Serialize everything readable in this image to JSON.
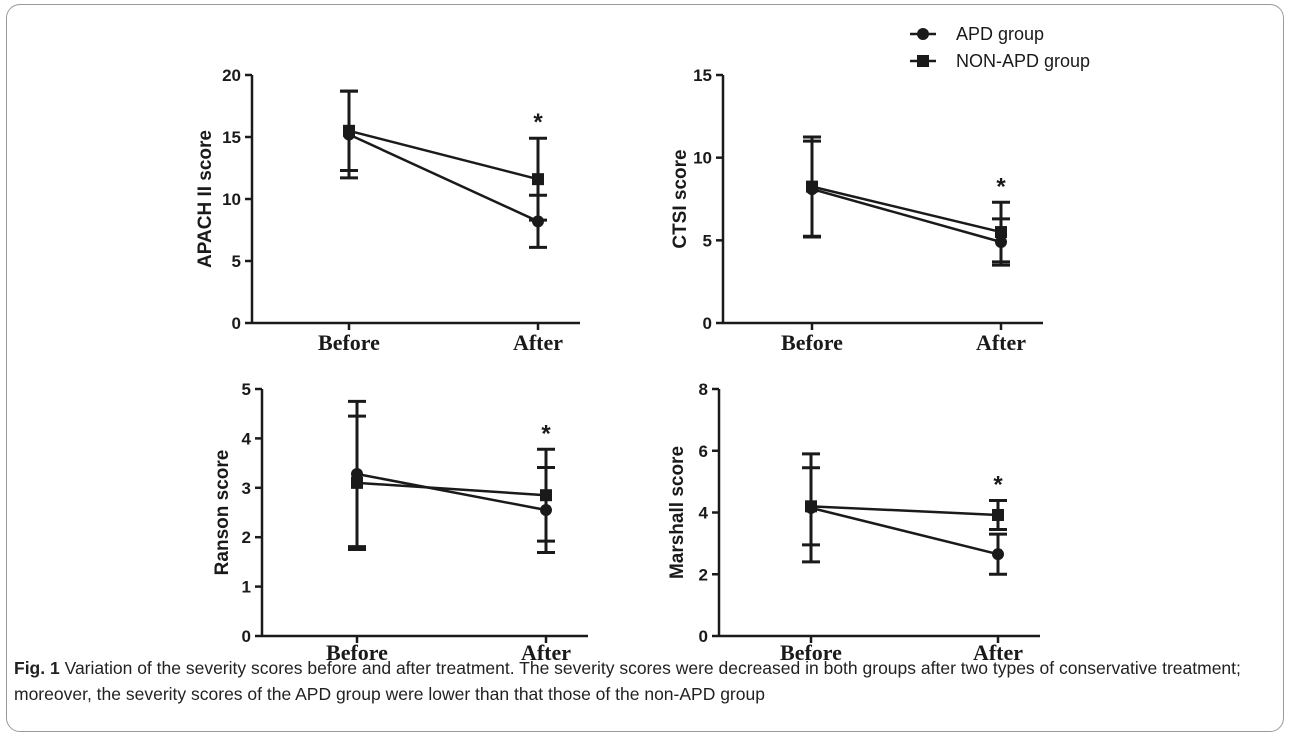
{
  "legend": {
    "position": "top-right",
    "items": [
      {
        "name": "APD group",
        "marker": "circle"
      },
      {
        "name": "NON-APD group",
        "marker": "square"
      }
    ]
  },
  "chart_data": [
    {
      "id": "apache",
      "type": "line",
      "ylabel": "APACH II score",
      "ylim": [
        0,
        20
      ],
      "yticks": [
        0,
        5,
        10,
        15,
        20
      ],
      "categories": [
        "Before",
        "After"
      ],
      "series": [
        {
          "name": "APD group",
          "marker": "circle",
          "values": [
            15.2,
            8.2
          ],
          "sd": [
            3.5,
            2.1
          ]
        },
        {
          "name": "NON-APD group",
          "marker": "square",
          "values": [
            15.5,
            11.6
          ],
          "sd": [
            3.2,
            3.3
          ]
        }
      ],
      "annotations": [
        {
          "category": "After",
          "text": "*"
        }
      ]
    },
    {
      "id": "ctsi",
      "type": "line",
      "ylabel": "CTSI score",
      "ylim": [
        0,
        15
      ],
      "yticks": [
        0,
        5,
        10,
        15
      ],
      "categories": [
        "Before",
        "After"
      ],
      "series": [
        {
          "name": "APD group",
          "marker": "circle",
          "values": [
            8.1,
            4.9
          ],
          "sd": [
            2.9,
            1.4
          ]
        },
        {
          "name": "NON-APD group",
          "marker": "square",
          "values": [
            8.25,
            5.5
          ],
          "sd": [
            3.0,
            1.8
          ]
        }
      ],
      "annotations": [
        {
          "category": "After",
          "text": "*"
        }
      ]
    },
    {
      "id": "ranson",
      "type": "line",
      "ylabel": "Ranson score",
      "ylim": [
        0,
        5
      ],
      "yticks": [
        0,
        1,
        2,
        3,
        4,
        5
      ],
      "categories": [
        "Before",
        "After"
      ],
      "series": [
        {
          "name": "APD group",
          "marker": "circle",
          "values": [
            3.28,
            2.55
          ],
          "sd": [
            1.47,
            0.86
          ]
        },
        {
          "name": "NON-APD group",
          "marker": "square",
          "values": [
            3.1,
            2.85
          ],
          "sd": [
            1.35,
            0.93
          ]
        }
      ],
      "annotations": [
        {
          "category": "After",
          "text": "*"
        }
      ]
    },
    {
      "id": "marshall",
      "type": "line",
      "ylabel": "Marshall score",
      "ylim": [
        0,
        8
      ],
      "yticks": [
        0,
        2,
        4,
        6,
        8
      ],
      "categories": [
        "Before",
        "After"
      ],
      "series": [
        {
          "name": "APD group",
          "marker": "circle",
          "values": [
            4.15,
            2.65
          ],
          "sd": [
            1.75,
            0.65
          ]
        },
        {
          "name": "NON-APD group",
          "marker": "square",
          "values": [
            4.2,
            3.92
          ],
          "sd": [
            1.25,
            0.47
          ]
        }
      ],
      "annotations": [
        {
          "category": "After",
          "text": "*"
        }
      ]
    }
  ],
  "caption": {
    "lead": "Fig. 1",
    "text": " Variation of the severity scores before and after treatment. The severity scores were decreased in both groups after two types of conservative treatment; moreover, the severity scores of the APD group were lower than that those of the non-APD group"
  }
}
